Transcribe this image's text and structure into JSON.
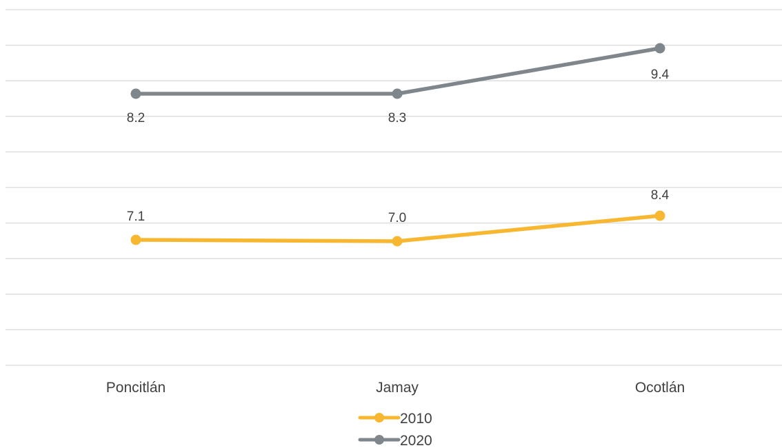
{
  "chart_data": {
    "type": "line",
    "categories": [
      "Poncitlán",
      "Jamay",
      "Ocotlán"
    ],
    "series": [
      {
        "name": "2010",
        "values": [
          7.1,
          7.0,
          8.4
        ],
        "labels": [
          "7.1",
          "7.0",
          "8.4"
        ],
        "color": "#f7b731"
      },
      {
        "name": "2020",
        "values": [
          8.2,
          8.3,
          9.4
        ],
        "labels": [
          "8.2",
          "8.3",
          "9.4"
        ],
        "color": "#7f868c"
      }
    ],
    "gridlines": 11,
    "legend_position": "bottom",
    "grid": true
  }
}
